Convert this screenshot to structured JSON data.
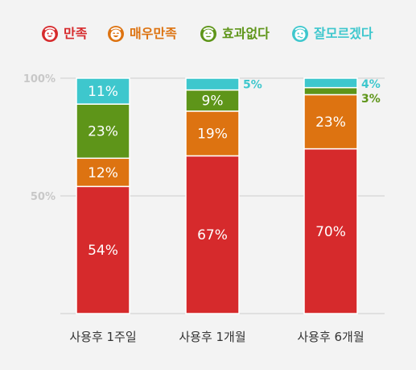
{
  "colors": {
    "background": "#f3f3f3",
    "gridline": "#cccccc",
    "tick_label": "#c8c8c8",
    "category_label": "#333333"
  },
  "legend": [
    {
      "label": "만족",
      "color": "#d62a2c",
      "icon": "smile-face-icon"
    },
    {
      "label": "매우만족",
      "color": "#dd7311",
      "icon": "grin-face-icon"
    },
    {
      "label": "효과없다",
      "color": "#5e9519",
      "icon": "neutral-face-icon"
    },
    {
      "label": "잘모르겠다",
      "color": "#3ec7cd",
      "icon": "confused-face-icon"
    }
  ],
  "chart_data": {
    "type": "bar",
    "stacked": true,
    "categories": [
      "사용후 1주일",
      "사용후 1개월",
      "사용후 6개월"
    ],
    "series": [
      {
        "name": "만족",
        "values": [
          54,
          67,
          70
        ],
        "color": "#d62a2c",
        "label_color": "#ffffff"
      },
      {
        "name": "매우만족",
        "values": [
          12,
          19,
          23
        ],
        "color": "#dd7311",
        "label_color": "#ffffff"
      },
      {
        "name": "효과없다",
        "values": [
          23,
          9,
          3
        ],
        "color": "#5e9519",
        "label_color": "#ffffff"
      },
      {
        "name": "잘모르겠다",
        "values": [
          11,
          5,
          4
        ],
        "color": "#3ec7cd",
        "label_color": "#ffffff"
      }
    ],
    "data_labels": [
      [
        "54%",
        "67%",
        "70%"
      ],
      [
        "12%",
        "19%",
        "23%"
      ],
      [
        "23%",
        "9%",
        "3%"
      ],
      [
        "11%",
        "5%",
        "4%"
      ]
    ],
    "y_ticks": [
      {
        "value": 100,
        "label": "100%"
      },
      {
        "value": 50,
        "label": "50%"
      }
    ],
    "ylim": [
      0,
      100
    ],
    "grid": true,
    "legend_position": "top"
  }
}
